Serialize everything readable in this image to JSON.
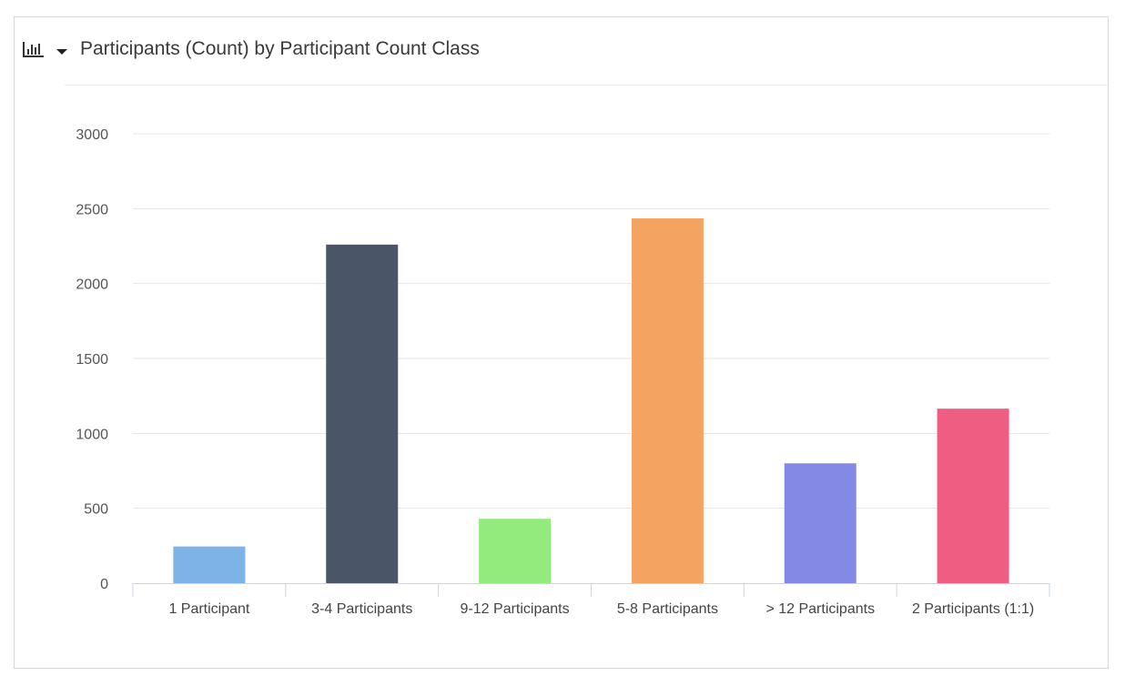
{
  "header": {
    "chart_type_icon": "bar-chart-icon",
    "dropdown_icon": "caret-down-icon",
    "title": "Participants (Count) by Participant Count Class"
  },
  "chart_data": {
    "type": "bar",
    "title": "Participants (Count) by Participant Count Class",
    "xlabel": "",
    "ylabel": "",
    "categories": [
      "1 Participant",
      "3-4 Participants",
      "9-12 Participants",
      "5-8 Participants",
      "> 12 Participants",
      "2 Participants (1:1)"
    ],
    "values": [
      245,
      2260,
      430,
      2435,
      800,
      1165
    ],
    "colors": [
      "#7eb3e8",
      "#4a5668",
      "#93eb7e",
      "#f4a460",
      "#8489e6",
      "#ef5d82"
    ],
    "ylim": [
      0,
      3000
    ],
    "yticks": [
      0,
      500,
      1000,
      1500,
      2000,
      2500,
      3000
    ],
    "grid": true,
    "legend": "none"
  }
}
